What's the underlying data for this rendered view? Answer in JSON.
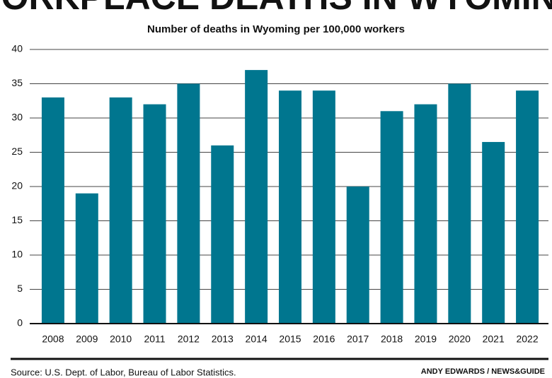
{
  "chart_data": {
    "type": "bar",
    "title": "WORKPLACE DEATHS IN WYOMING",
    "subtitle": "Number of deaths in Wyoming  per 100,000 workers",
    "categories": [
      "2008",
      "2009",
      "2010",
      "2011",
      "2012",
      "2013",
      "2014",
      "2015",
      "2016",
      "2017",
      "2018",
      "2019",
      "2020",
      "2021",
      "2022"
    ],
    "values": [
      33,
      19,
      33,
      32,
      35,
      26,
      37,
      34,
      34,
      20,
      31,
      32,
      35,
      26.5,
      34
    ],
    "color": "#00768f",
    "ylim": [
      0,
      40
    ],
    "yticks": [
      0,
      5,
      10,
      15,
      20,
      25,
      30,
      35,
      40
    ],
    "grid": true,
    "source": "Source: U.S. Dept. of Labor, Bureau of Labor Statistics.",
    "credit": "ANDY EDWARDS / NEWS&GUIDE"
  }
}
